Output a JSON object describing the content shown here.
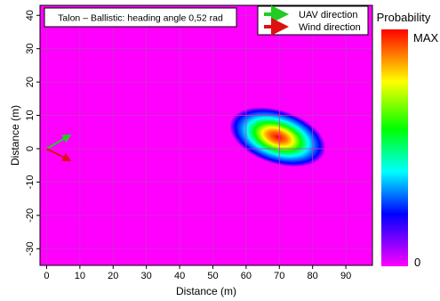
{
  "chart_data": {
    "type": "heatmap",
    "title": "Talon – Ballistic: heading angle 0,52 rad",
    "xlabel": "Distance (m)",
    "ylabel": "Distance (m)",
    "xlim": [
      -2,
      98
    ],
    "ylim": [
      -35,
      43
    ],
    "x_ticks": [
      0,
      10,
      20,
      30,
      40,
      50,
      60,
      70,
      80,
      90
    ],
    "y_ticks": [
      -30,
      -20,
      -10,
      0,
      10,
      20,
      30,
      40
    ],
    "x_tick_labels": [
      "0",
      "10",
      "20",
      "30",
      "40",
      "50",
      "60",
      "70",
      "80",
      "90"
    ],
    "y_tick_labels": [
      "-30",
      "-20",
      "-10",
      "0",
      "10",
      "20",
      "30",
      "40"
    ],
    "grid": true,
    "legend": {
      "placement": "top-right",
      "entries": [
        {
          "label": "UAV direction",
          "color": "#22cc22"
        },
        {
          "label": "Wind direction",
          "color": "#dd1111"
        }
      ]
    },
    "colorbar": {
      "title": "Probability",
      "max_label": "MAX",
      "min_label": "0",
      "colormap": "rainbow (magenta → blue → cyan → green → yellow → red)"
    },
    "background_color": "#ff00ff",
    "distribution": {
      "shape": "rotated gaussian ellipse",
      "peak_x": 69.5,
      "peak_y": 3.5,
      "orientation_deg": -18,
      "semi_major_axis": 13,
      "semi_minor_axis": 7
    },
    "uav_direction_arrow": {
      "from": [
        0,
        0
      ],
      "to": [
        7,
        4
      ],
      "color": "#22cc22"
    },
    "wind_direction_arrow": {
      "from": [
        0,
        0
      ],
      "to": [
        7,
        -3.5
      ],
      "color": "#dd1111"
    }
  }
}
